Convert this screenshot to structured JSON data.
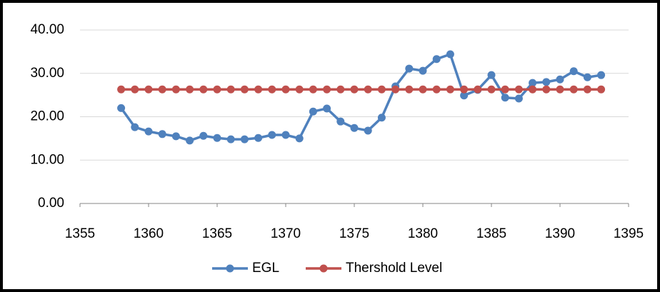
{
  "chart_data": {
    "type": "line",
    "x": [
      1358,
      1359,
      1360,
      1361,
      1362,
      1363,
      1364,
      1365,
      1366,
      1367,
      1368,
      1369,
      1370,
      1371,
      1372,
      1373,
      1374,
      1375,
      1376,
      1377,
      1378,
      1379,
      1380,
      1381,
      1382,
      1383,
      1384,
      1385,
      1386,
      1387,
      1388,
      1389,
      1390,
      1391,
      1392,
      1393
    ],
    "series": [
      {
        "name": "EGL",
        "color": "#4f81bd",
        "values": [
          22.0,
          17.6,
          16.6,
          16.0,
          15.5,
          14.5,
          15.6,
          15.1,
          14.8,
          14.8,
          15.1,
          15.8,
          15.8,
          15.0,
          21.2,
          21.9,
          18.9,
          17.4,
          16.8,
          19.8,
          27.0,
          31.1,
          30.6,
          33.3,
          34.4,
          24.9,
          26.2,
          29.6,
          24.4,
          24.2,
          27.8,
          28.0,
          28.6,
          30.5,
          29.1,
          29.6
        ]
      },
      {
        "name": "Thershold Level",
        "color": "#c0504d",
        "values": [
          26.3,
          26.3,
          26.3,
          26.3,
          26.3,
          26.3,
          26.3,
          26.3,
          26.3,
          26.3,
          26.3,
          26.3,
          26.3,
          26.3,
          26.3,
          26.3,
          26.3,
          26.3,
          26.3,
          26.3,
          26.3,
          26.3,
          26.3,
          26.3,
          26.3,
          26.3,
          26.3,
          26.3,
          26.3,
          26.3,
          26.3,
          26.3,
          26.3,
          26.3,
          26.3,
          26.3
        ]
      }
    ],
    "xlim": [
      1355,
      1395
    ],
    "xticks": [
      1355,
      1360,
      1365,
      1370,
      1375,
      1380,
      1385,
      1390,
      1395
    ],
    "ylim": [
      0,
      40
    ],
    "yticks": [
      {
        "value": 0,
        "label": "0.00"
      },
      {
        "value": 10,
        "label": "10.00"
      },
      {
        "value": 20,
        "label": "20.00"
      },
      {
        "value": 30,
        "label": "30.00"
      },
      {
        "value": 40,
        "label": "40.00"
      }
    ],
    "grid": true,
    "legend": "bottom"
  }
}
